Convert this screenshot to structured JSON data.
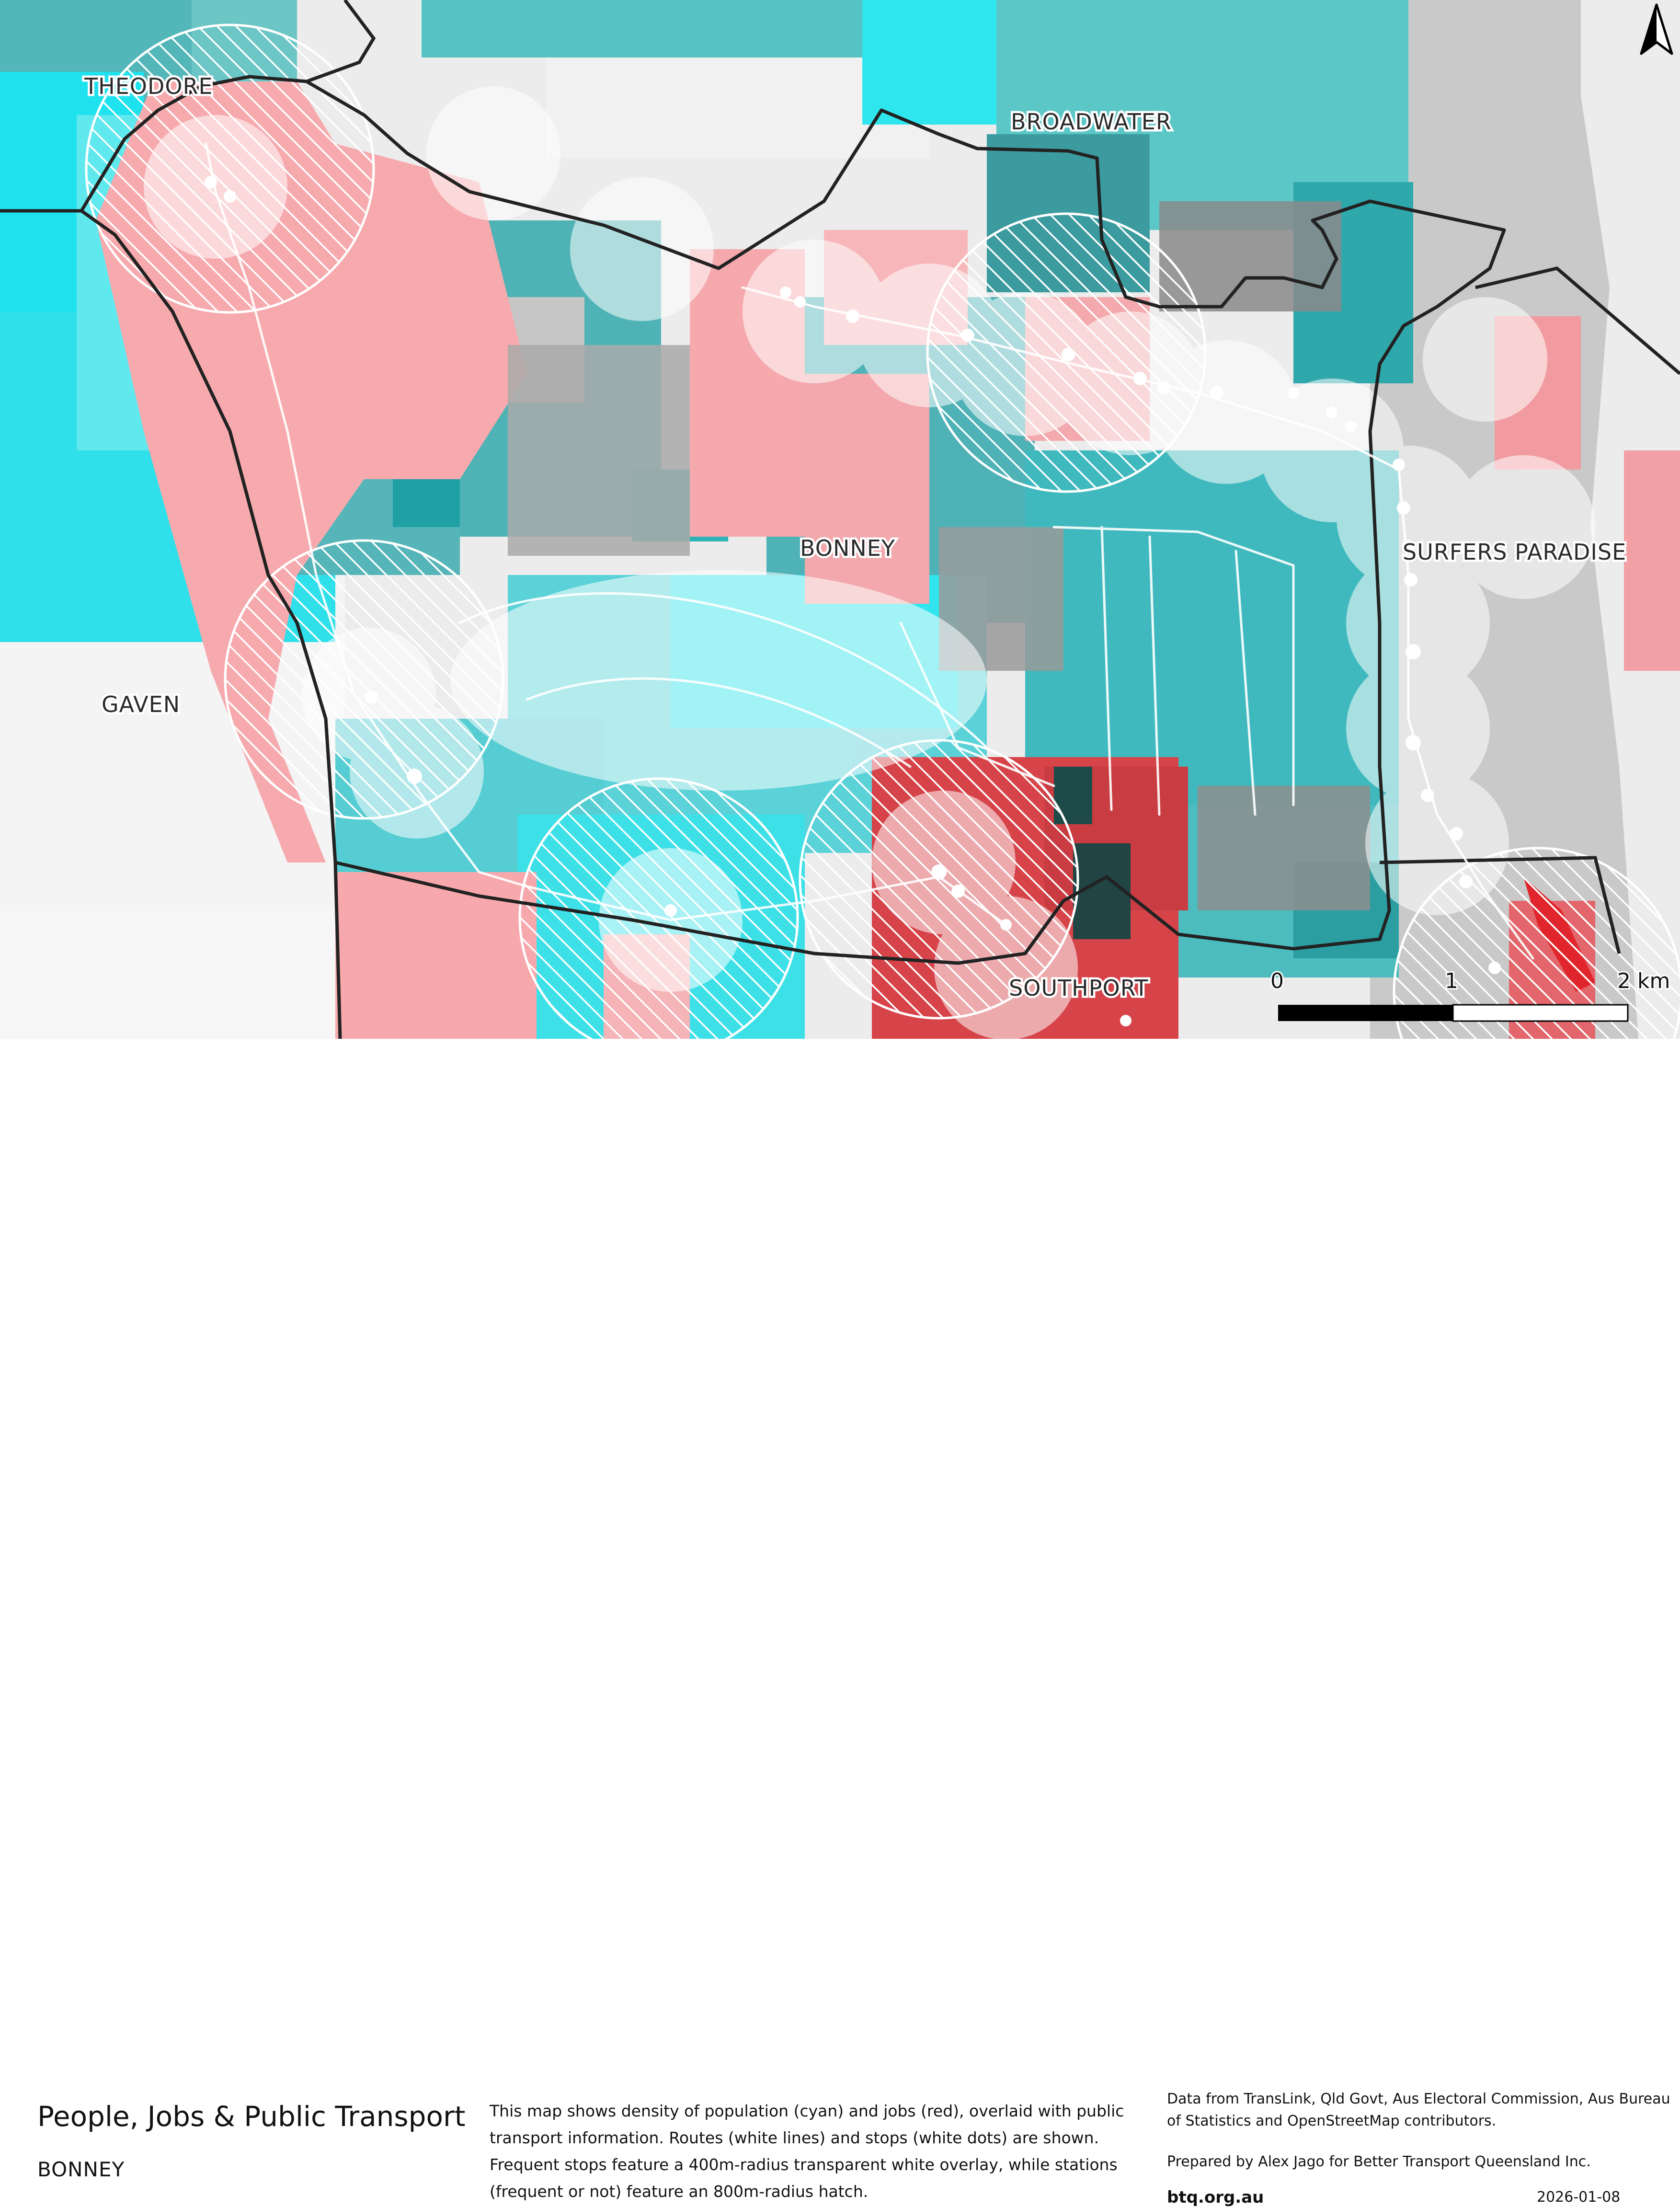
{
  "map": {
    "labels": {
      "theodore": "THEODORE",
      "broadwater": "BROADWATER",
      "bonney": "BONNEY",
      "surfers_paradise": "SURFERS PARADISE",
      "gaven": "GAVEN",
      "southport": "SOUTHPORT"
    },
    "scale_bar": {
      "ticks": [
        "0",
        "1",
        "2 km"
      ]
    },
    "colors": {
      "population": "#27c9cf",
      "jobs": "#e6454a",
      "boundary": "#222222",
      "routes": "#ffffff",
      "base": "#ececec"
    },
    "icons": {
      "north_arrow": "north-arrow-icon"
    }
  },
  "footer": {
    "title": "People, Jobs & Public Transport",
    "subtitle": "BONNEY",
    "description": "This map shows density of population (cyan) and jobs (red), overlaid with public transport information. Routes (white lines) and stops (white dots) are shown. Frequent stops feature a 400m-radius transparent white overlay, while stations (frequent or not) feature an 800m-radius hatch.",
    "data_sources": "Data from TransLink,  Qld Govt,  Aus Electoral Commission, Aus Bureau of Statistics and OpenStreetMap contributors.",
    "prepared_by": "Prepared by Alex Jago for Better Transport Queensland Inc.",
    "url": "btq.org.au",
    "date": "2026-01-08"
  }
}
